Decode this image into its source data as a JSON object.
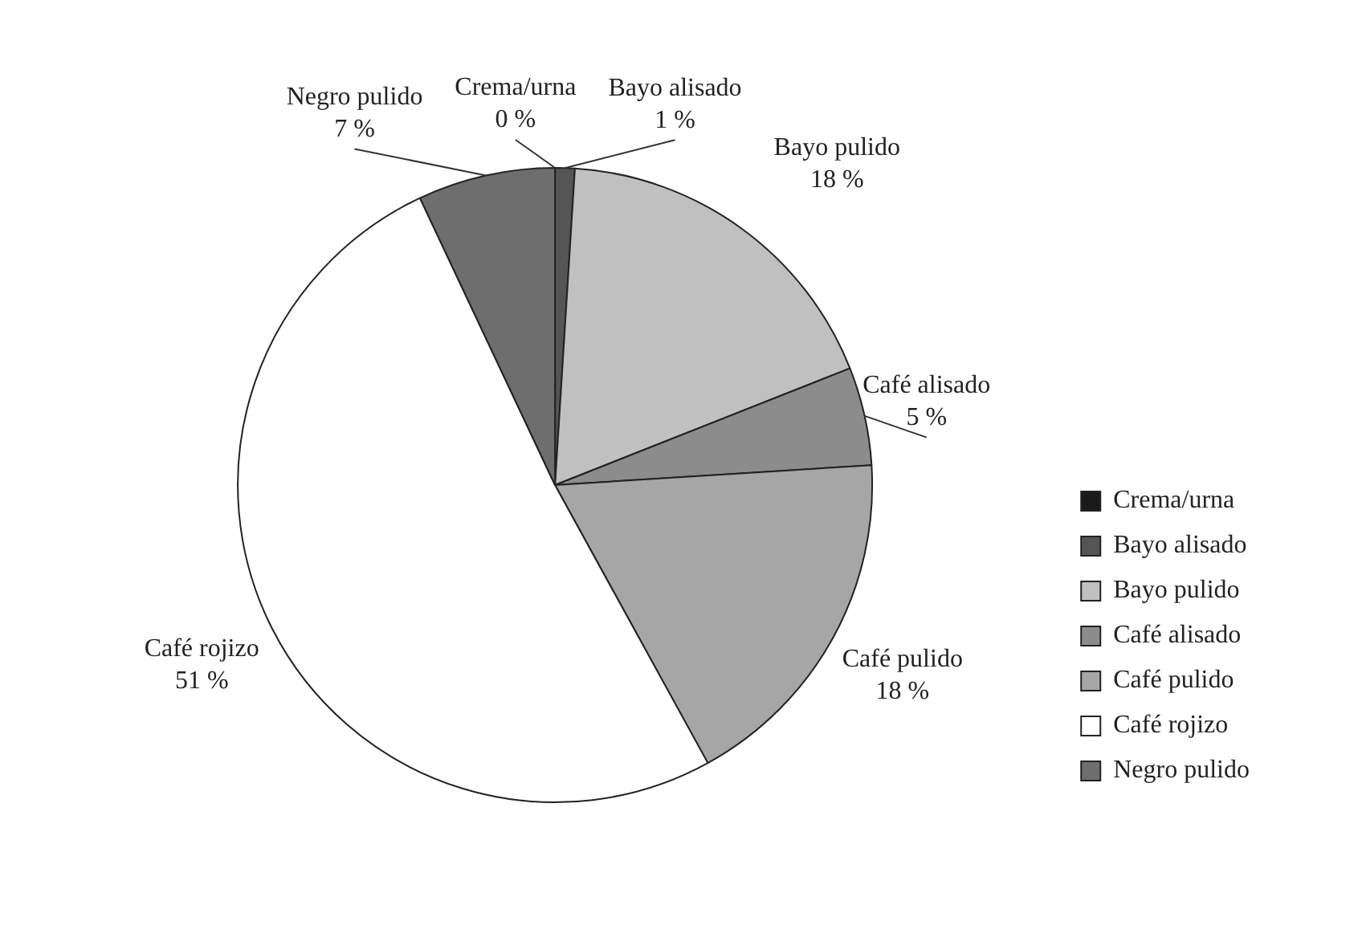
{
  "chart_data": {
    "type": "pie",
    "categories": [
      "Crema/urna",
      "Bayo alisado",
      "Bayo pulido",
      "Café alisado",
      "Café pulido",
      "Café rojizo",
      "Negro pulido"
    ],
    "values": [
      0,
      1,
      18,
      5,
      18,
      51,
      7
    ],
    "value_labels": [
      "0 %",
      "1 %",
      "18 %",
      "5 %",
      "18 %",
      "51 %",
      "7 %"
    ],
    "colors": [
      "#1a1a1a",
      "#555555",
      "#c0c0c0",
      "#8c8c8c",
      "#a6a6a6",
      "#ffffff",
      "#6e6e6e"
    ],
    "legend": "bottom right"
  }
}
